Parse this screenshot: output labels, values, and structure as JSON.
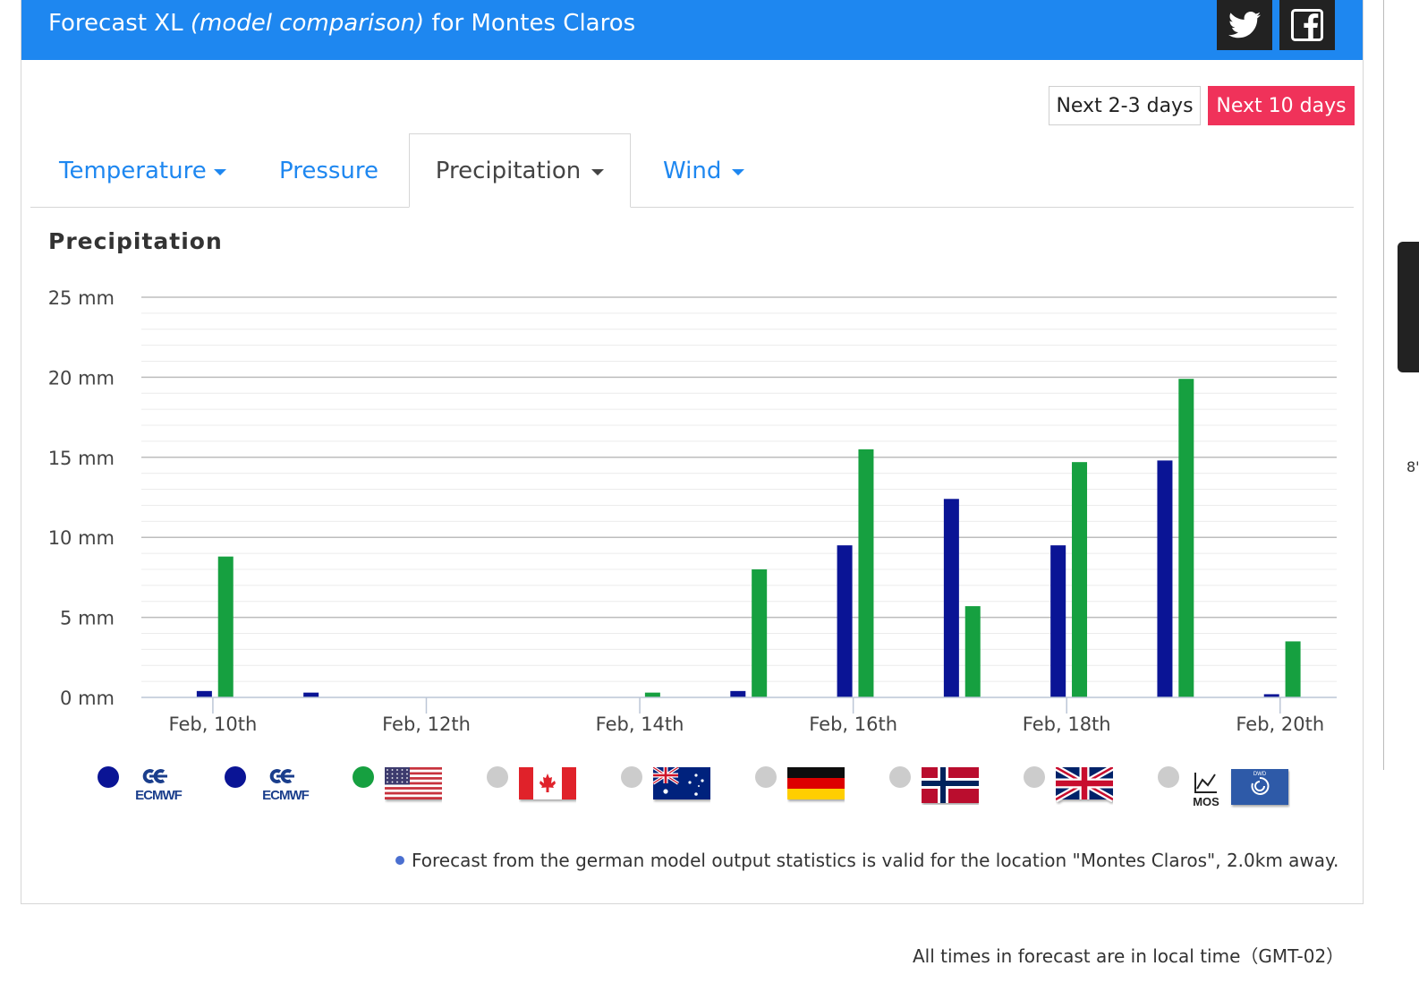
{
  "header": {
    "title_prefix": "Forecast XL",
    "title_italic": "(model comparison)",
    "title_suffix": "for Montes Claros",
    "social": [
      {
        "name": "twitter-icon"
      },
      {
        "name": "facebook-icon"
      }
    ]
  },
  "range_buttons": {
    "short": "Next 2-3 days",
    "long": "Next 10 days",
    "active": "long",
    "active_color": "#f0325a"
  },
  "tabs": [
    {
      "label": "Temperature",
      "caret": true,
      "active": false
    },
    {
      "label": "Pressure",
      "caret": false,
      "active": false
    },
    {
      "label": "Precipitation",
      "caret": true,
      "active": true
    },
    {
      "label": "Wind",
      "caret": true,
      "active": false
    }
  ],
  "chart_data": {
    "type": "bar",
    "title": "Precipitation",
    "y_unit": "mm",
    "ylim": [
      0,
      25
    ],
    "y_ticks": [
      0,
      5,
      10,
      15,
      20,
      25
    ],
    "y_tick_labels": [
      "0 mm",
      "5 mm",
      "10 mm",
      "15 mm",
      "20 mm",
      "25 mm"
    ],
    "minor_grid_step": 1,
    "grid": true,
    "x_tick_labels": [
      "Feb, 10th",
      "Feb, 12th",
      "Feb, 14th",
      "Feb, 16th",
      "Feb, 18th",
      "Feb, 20th"
    ],
    "x_tick_days": [
      10,
      12,
      14,
      16,
      18,
      20
    ],
    "x_range_days": [
      9.33,
      20.53
    ],
    "series": [
      {
        "color": "#0a1495",
        "points": [
          {
            "day": 9.92,
            "value": 0.4
          },
          {
            "day": 10.92,
            "value": 0.3
          },
          {
            "day": 14.92,
            "value": 0.4
          },
          {
            "day": 15.92,
            "value": 9.5
          },
          {
            "day": 16.92,
            "value": 12.4
          },
          {
            "day": 17.92,
            "value": 9.5
          },
          {
            "day": 18.92,
            "value": 14.8
          },
          {
            "day": 19.92,
            "value": 0.2
          }
        ]
      },
      {
        "color": "#16a040",
        "points": [
          {
            "day": 10.12,
            "value": 8.8
          },
          {
            "day": 14.12,
            "value": 0.3
          },
          {
            "day": 15.12,
            "value": 8.0
          },
          {
            "day": 16.12,
            "value": 15.5
          },
          {
            "day": 17.12,
            "value": 5.7
          },
          {
            "day": 18.12,
            "value": 14.7
          },
          {
            "day": 19.12,
            "value": 19.9
          },
          {
            "day": 20.12,
            "value": 3.5
          }
        ]
      }
    ]
  },
  "legend": [
    {
      "dot_color": "#0a1495",
      "icon": "ecmwf-logo",
      "logo_text": "ECMWF"
    },
    {
      "dot_color": "#0a1495",
      "icon": "ecmwf-logo",
      "logo_text": "ECMWF"
    },
    {
      "dot_color": "#16a040",
      "icon": "usa-flag-icon"
    },
    {
      "dot_color": "#cccccc",
      "icon": "canada-flag-icon"
    },
    {
      "dot_color": "#cccccc",
      "icon": "australia-flag-icon"
    },
    {
      "dot_color": "#cccccc",
      "icon": "germany-flag-icon"
    },
    {
      "dot_color": "#cccccc",
      "icon": "norway-flag-icon"
    },
    {
      "dot_color": "#cccccc",
      "icon": "uk-flag-icon"
    },
    {
      "dot_color": "#cccccc",
      "icon": "mos-dwd-logo",
      "logo_text": "MOS",
      "logo_text_2": "DWD"
    }
  ],
  "footnote": "Forecast from the german model output statistics is valid for the location \"Montes Claros\", 2.0km away.",
  "timezone_note": "All times in forecast are in local time（GMT-02）",
  "side_strip_text": "8'"
}
